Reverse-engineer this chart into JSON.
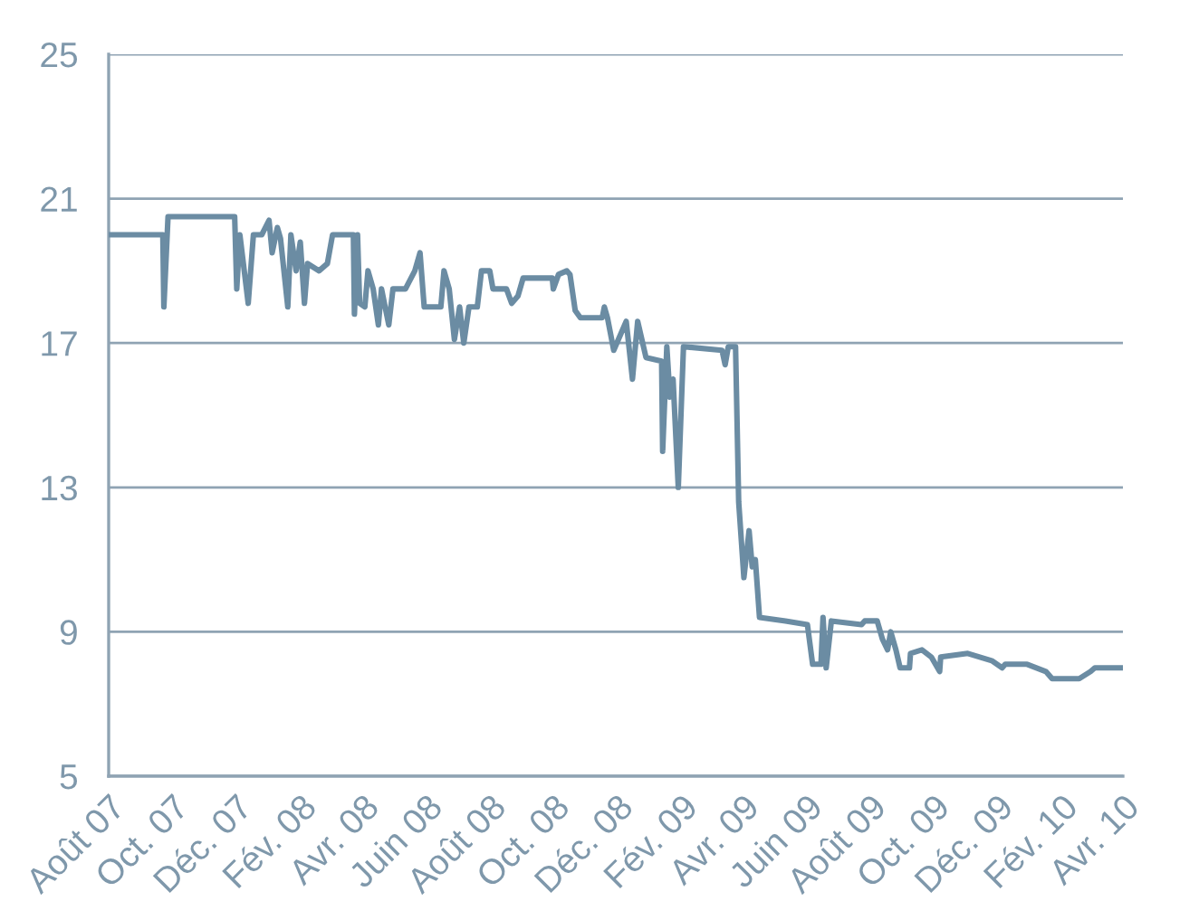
{
  "chart_data": {
    "type": "line",
    "color": "#6b8ca3",
    "grid": "y",
    "marker": "none",
    "line_style": "solid",
    "ylim": [
      5,
      25
    ],
    "yticks": [
      5,
      9,
      13,
      17,
      21,
      25
    ],
    "xlim": [
      "2007-08-01",
      "2010-04-01"
    ],
    "xticks": [
      {
        "value": "2007-08-01",
        "label": "Août 07"
      },
      {
        "value": "2007-10-01",
        "label": "Oct. 07"
      },
      {
        "value": "2007-12-01",
        "label": "Déc. 07"
      },
      {
        "value": "2008-02-01",
        "label": "Fév. 08"
      },
      {
        "value": "2008-04-01",
        "label": "Avr. 08"
      },
      {
        "value": "2008-06-01",
        "label": "Juin 08"
      },
      {
        "value": "2008-08-01",
        "label": "Août 08"
      },
      {
        "value": "2008-10-01",
        "label": "Oct. 08"
      },
      {
        "value": "2008-12-01",
        "label": "Déc. 08"
      },
      {
        "value": "2009-02-01",
        "label": "Fév. 09"
      },
      {
        "value": "2009-04-01",
        "label": "Avr. 09"
      },
      {
        "value": "2009-06-01",
        "label": "Juin 09"
      },
      {
        "value": "2009-08-01",
        "label": "Août 09"
      },
      {
        "value": "2009-10-01",
        "label": "Oct. 09"
      },
      {
        "value": "2009-12-01",
        "label": "Déc. 09"
      },
      {
        "value": "2010-02-01",
        "label": "Fév. 10"
      },
      {
        "value": "2010-04-01",
        "label": "Avr. 10"
      }
    ],
    "x": [
      "2007-08-01",
      "2007-09-22",
      "2007-09-23",
      "2007-09-27",
      "2007-11-30",
      "2007-12-02",
      "2007-12-05",
      "2007-12-13",
      "2007-12-18",
      "2007-12-26",
      "2008-01-02",
      "2008-01-05",
      "2008-01-10",
      "2008-01-13",
      "2008-01-20",
      "2008-01-23",
      "2008-01-28",
      "2008-02-01",
      "2008-02-05",
      "2008-02-08",
      "2008-02-19",
      "2008-02-27",
      "2008-03-03",
      "2008-03-23",
      "2008-03-24",
      "2008-03-27",
      "2008-03-29",
      "2008-04-03",
      "2008-04-06",
      "2008-04-11",
      "2008-04-16",
      "2008-04-19",
      "2008-04-26",
      "2008-04-30",
      "2008-05-12",
      "2008-05-21",
      "2008-05-26",
      "2008-05-30",
      "2008-06-15",
      "2008-06-18",
      "2008-06-23",
      "2008-06-28",
      "2008-07-03",
      "2008-07-07",
      "2008-07-12",
      "2008-07-20",
      "2008-07-24",
      "2008-08-01",
      "2008-08-04",
      "2008-08-17",
      "2008-08-22",
      "2008-08-28",
      "2008-09-02",
      "2008-09-30",
      "2008-10-01",
      "2008-10-06",
      "2008-10-14",
      "2008-10-17",
      "2008-10-22",
      "2008-10-27",
      "2008-11-17",
      "2008-11-19",
      "2008-11-22",
      "2008-11-28",
      "2008-12-10",
      "2008-12-16",
      "2008-12-21",
      "2008-12-29",
      "2009-01-13",
      "2009-01-14",
      "2009-01-18",
      "2009-01-21",
      "2009-01-24",
      "2009-01-29",
      "2009-02-03",
      "2009-03-12",
      "2009-03-15",
      "2009-03-18",
      "2009-03-25",
      "2009-03-28",
      "2009-04-02",
      "2009-04-07",
      "2009-04-10",
      "2009-04-13",
      "2009-04-17",
      "2009-05-12",
      "2009-06-02",
      "2009-06-07",
      "2009-06-15",
      "2009-06-17",
      "2009-06-20",
      "2009-06-25",
      "2009-07-24",
      "2009-07-27",
      "2009-08-08",
      "2009-08-13",
      "2009-08-18",
      "2009-08-21",
      "2009-08-26",
      "2009-08-30",
      "2009-09-08",
      "2009-09-09",
      "2009-09-20",
      "2009-09-29",
      "2009-10-07",
      "2009-10-08",
      "2009-11-03",
      "2009-11-26",
      "2009-12-06",
      "2009-12-09",
      "2009-12-30",
      "2010-01-17",
      "2010-01-23",
      "2010-02-18",
      "2010-03-01",
      "2010-03-05",
      "2010-04-01"
    ],
    "values": [
      20.0,
      20.0,
      18.0,
      20.5,
      20.5,
      18.5,
      20.0,
      18.1,
      20.0,
      20.0,
      20.4,
      19.5,
      20.2,
      19.9,
      18.0,
      20.0,
      19.0,
      19.8,
      18.1,
      19.2,
      19.0,
      19.2,
      20.0,
      20.0,
      17.8,
      20.0,
      18.1,
      18.0,
      19.0,
      18.5,
      17.5,
      18.5,
      17.5,
      18.5,
      18.5,
      19.0,
      19.5,
      18.0,
      18.0,
      19.0,
      18.5,
      17.1,
      18.0,
      17.0,
      18.0,
      18.0,
      19.0,
      19.0,
      18.5,
      18.5,
      18.1,
      18.3,
      18.8,
      18.8,
      18.5,
      18.9,
      19.0,
      18.9,
      17.9,
      17.7,
      17.7,
      18.0,
      17.7,
      16.8,
      17.6,
      16.0,
      17.6,
      16.6,
      16.5,
      14.0,
      16.9,
      15.5,
      16.0,
      13.0,
      16.9,
      16.8,
      16.4,
      16.9,
      16.9,
      12.6,
      10.5,
      11.8,
      10.8,
      11.0,
      9.4,
      9.3,
      9.2,
      8.1,
      8.1,
      9.4,
      8.0,
      9.3,
      9.2,
      9.3,
      9.3,
      8.8,
      8.5,
      9.0,
      8.5,
      8.0,
      8.0,
      8.4,
      8.5,
      8.3,
      7.9,
      8.3,
      8.4,
      8.2,
      8.0,
      8.1,
      8.1,
      7.9,
      7.7,
      7.7,
      7.9,
      8.0,
      8.0
    ]
  }
}
